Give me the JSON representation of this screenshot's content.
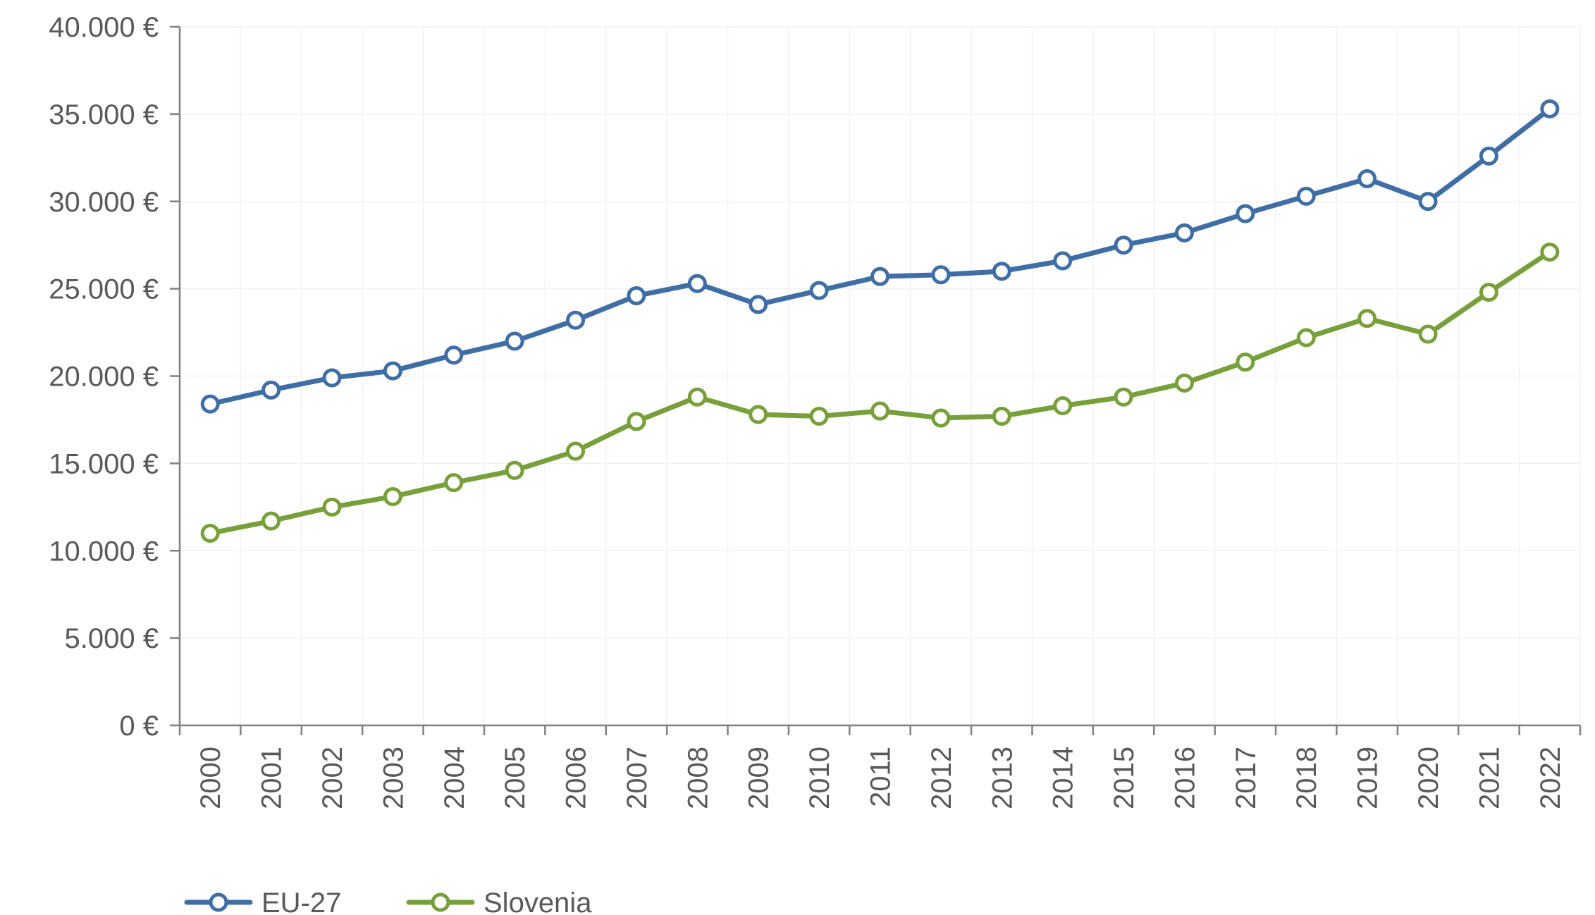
{
  "chart_data": {
    "type": "line",
    "title": "",
    "xlabel": "",
    "ylabel": "",
    "categories": [
      "2000",
      "2001",
      "2002",
      "2003",
      "2004",
      "2005",
      "2006",
      "2007",
      "2008",
      "2009",
      "2010",
      "2011",
      "2012",
      "2013",
      "2014",
      "2015",
      "2016",
      "2017",
      "2018",
      "2019",
      "2020",
      "2021",
      "2022"
    ],
    "ylim": [
      0,
      40000
    ],
    "y_ticks": [
      0,
      5000,
      10000,
      15000,
      20000,
      25000,
      30000,
      35000,
      40000
    ],
    "y_tick_labels": [
      "0 €",
      "5.000 €",
      "10.000 €",
      "15.000 €",
      "20.000 €",
      "25.000 €",
      "30.000 €",
      "35.000 €",
      "40.000 €"
    ],
    "grid": "faint",
    "legend_position": "bottom-left",
    "series": [
      {
        "name": "EU-27",
        "color": "#3f6ea6",
        "values": [
          18400,
          19200,
          19900,
          20300,
          21200,
          22000,
          23200,
          24600,
          25300,
          24100,
          24900,
          25700,
          25800,
          26000,
          26600,
          27500,
          28200,
          29300,
          30300,
          31300,
          30000,
          32600,
          35300
        ]
      },
      {
        "name": "Slovenia",
        "color": "#77a03a",
        "values": [
          11000,
          11700,
          12500,
          13100,
          13900,
          14600,
          15700,
          17400,
          18800,
          17800,
          17700,
          18000,
          17600,
          17700,
          18300,
          18800,
          19600,
          20800,
          22200,
          23300,
          22400,
          24800,
          27100
        ]
      }
    ]
  }
}
